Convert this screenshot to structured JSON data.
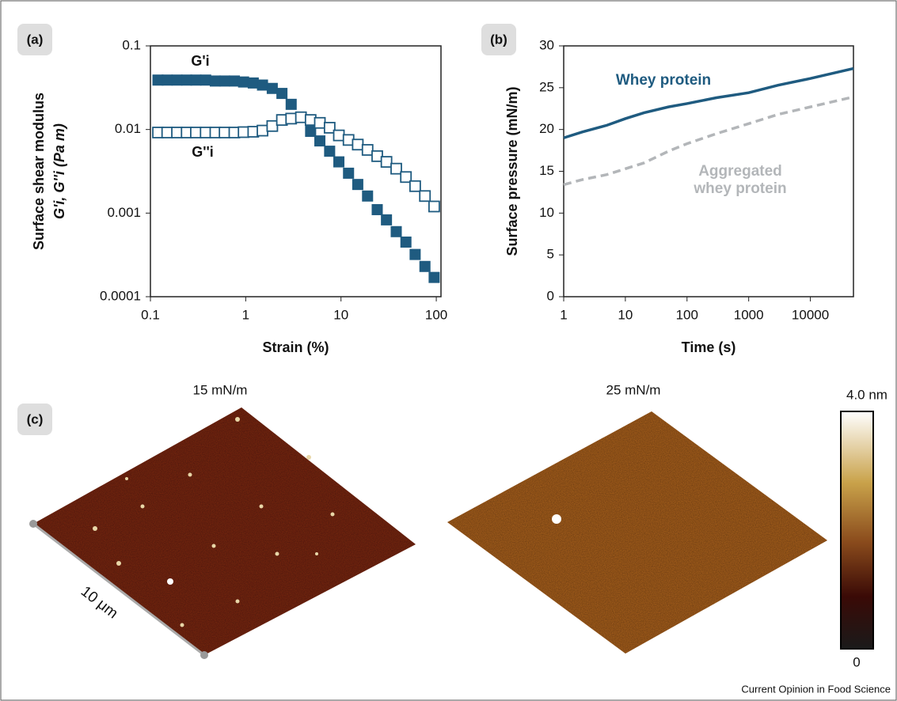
{
  "chart_data": [
    {
      "type": "scatter",
      "panel": "(a)",
      "xlabel": "Strain (%)",
      "ylabel": [
        "Surface shear modulus",
        "G'i, G''i (Pa m)"
      ],
      "xscale": "log",
      "yscale": "log",
      "xlim": [
        0.1,
        112
      ],
      "ylim": [
        0.0001,
        0.1
      ],
      "xticks": [
        0.1,
        1,
        10,
        100
      ],
      "yticks": [
        0.1,
        0.01,
        0.001,
        0.0001
      ],
      "x": [
        0.12,
        0.15,
        0.19,
        0.24,
        0.3,
        0.38,
        0.48,
        0.6,
        0.76,
        0.95,
        1.2,
        1.5,
        1.9,
        2.4,
        3,
        3.8,
        4.8,
        6,
        7.6,
        9.5,
        12,
        15,
        19,
        24,
        30,
        38,
        48,
        60,
        76,
        95
      ],
      "series": [
        {
          "name": "G'i",
          "color": "#1f5b80",
          "marker": "filled",
          "values": [
            0.039,
            0.039,
            0.039,
            0.039,
            0.039,
            0.039,
            0.038,
            0.038,
            0.038,
            0.037,
            0.036,
            0.034,
            0.031,
            0.027,
            0.02,
            0.014,
            0.0095,
            0.0073,
            0.0055,
            0.0041,
            0.003,
            0.0022,
            0.0016,
            0.0011,
            0.00083,
            0.0006,
            0.00045,
            0.00032,
            0.00023,
            0.00017
          ]
        },
        {
          "name": "G''i",
          "color": "#1f5b80",
          "marker": "open",
          "values": [
            0.0092,
            0.0092,
            0.0092,
            0.0092,
            0.0092,
            0.0092,
            0.0092,
            0.0092,
            0.0092,
            0.0093,
            0.0094,
            0.0097,
            0.011,
            0.013,
            0.0135,
            0.014,
            0.013,
            0.012,
            0.0105,
            0.0085,
            0.0075,
            0.0066,
            0.0057,
            0.0048,
            0.0041,
            0.0034,
            0.0027,
            0.0021,
            0.0016,
            0.0012
          ]
        }
      ]
    },
    {
      "type": "line",
      "panel": "(b)",
      "xlabel": "Time (s)",
      "ylabel": [
        "Surface pressure (mN/m)"
      ],
      "xscale": "log",
      "xlim": [
        1,
        50000
      ],
      "ylim": [
        0,
        30
      ],
      "xticks": [
        1,
        10,
        100,
        1000,
        10000
      ],
      "yticks": [
        0,
        5,
        10,
        15,
        20,
        25,
        30
      ],
      "x": [
        1,
        2,
        5,
        10,
        20,
        50,
        100,
        300,
        1000,
        3000,
        10000,
        50000
      ],
      "series": [
        {
          "name": "Whey protein",
          "color": "#1f5b80",
          "dash": "solid",
          "values": [
            19,
            19.7,
            20.5,
            21.3,
            22,
            22.7,
            23.1,
            23.8,
            24.4,
            25.3,
            26.1,
            27.3
          ]
        },
        {
          "name": "Aggregated whey protein",
          "color": "#b3b6b9",
          "dash": "dashed",
          "values": [
            13.4,
            14,
            14.6,
            15.3,
            16,
            17.4,
            18.3,
            19.5,
            20.7,
            21.8,
            22.7,
            23.9
          ]
        }
      ]
    }
  ],
  "panel_c": {
    "label": "(c)",
    "image_titles": [
      "15 mN/m",
      "25 mN/m"
    ],
    "scale_bar": "10 μm",
    "colorbar": {
      "max_label": "4.0 nm",
      "min_label": "0"
    }
  },
  "footer": "Current Opinion in Food Science"
}
